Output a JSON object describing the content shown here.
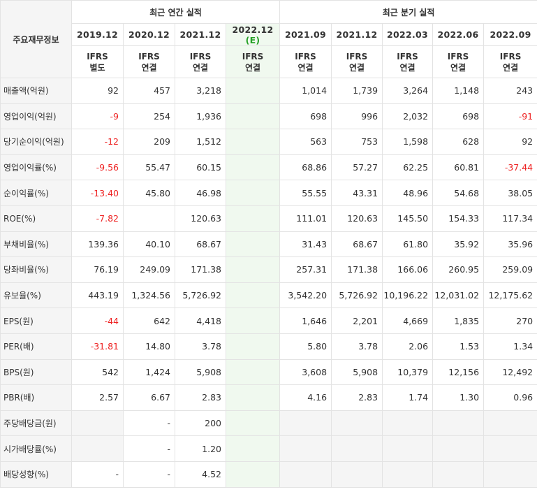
{
  "header": {
    "corner_label": "주요재무정보",
    "annual_group_label": "최근 연간 실적",
    "quarterly_group_label": "최근 분기 실적",
    "annual_periods": [
      {
        "year": "2019.12",
        "ifrs": "IFRS",
        "basis": "별도"
      },
      {
        "year": "2020.12",
        "ifrs": "IFRS",
        "basis": "연결"
      },
      {
        "year": "2021.12",
        "ifrs": "IFRS",
        "basis": "연결"
      },
      {
        "year": "2022.12",
        "estimate_mark": "(E)",
        "ifrs": "IFRS",
        "basis": "연결"
      }
    ],
    "quarterly_periods": [
      {
        "year": "2021.09",
        "ifrs": "IFRS",
        "basis": "연결"
      },
      {
        "year": "2021.12",
        "ifrs": "IFRS",
        "basis": "연결"
      },
      {
        "year": "2022.03",
        "ifrs": "IFRS",
        "basis": "연결"
      },
      {
        "year": "2022.06",
        "ifrs": "IFRS",
        "basis": "연결"
      },
      {
        "year": "2022.09",
        "ifrs": "IFRS",
        "basis": "연결"
      }
    ]
  },
  "colors": {
    "negative": "#ee2222",
    "ifrs_label": "#f25f0f",
    "estimate_column": "#f0f9ef",
    "estimate_mark": "#27a127",
    "label_background": "#f5f5f5"
  },
  "rows": [
    {
      "label": "매출액(억원)",
      "values": [
        "92",
        "457",
        "3,218",
        "",
        "1,014",
        "1,739",
        "3,264",
        "1,148",
        "243"
      ]
    },
    {
      "label": "영업이익(억원)",
      "values": [
        "-9",
        "254",
        "1,936",
        "",
        "698",
        "996",
        "2,032",
        "698",
        "-91"
      ]
    },
    {
      "label": "당기순이익(억원)",
      "values": [
        "-12",
        "209",
        "1,512",
        "",
        "563",
        "753",
        "1,598",
        "628",
        "92"
      ]
    },
    {
      "label": "영업이익률(%)",
      "values": [
        "-9.56",
        "55.47",
        "60.15",
        "",
        "68.86",
        "57.27",
        "62.25",
        "60.81",
        "-37.44"
      ]
    },
    {
      "label": "순이익률(%)",
      "values": [
        "-13.40",
        "45.80",
        "46.98",
        "",
        "55.55",
        "43.31",
        "48.96",
        "54.68",
        "38.05"
      ]
    },
    {
      "label": "ROE(%)",
      "values": [
        "-7.82",
        "",
        "120.63",
        "",
        "111.01",
        "120.63",
        "145.50",
        "154.33",
        "117.34"
      ]
    },
    {
      "label": "부채비율(%)",
      "values": [
        "139.36",
        "40.10",
        "68.67",
        "",
        "31.43",
        "68.67",
        "61.80",
        "35.92",
        "35.96"
      ]
    },
    {
      "label": "당좌비율(%)",
      "values": [
        "76.19",
        "249.09",
        "171.38",
        "",
        "257.31",
        "171.38",
        "166.06",
        "260.95",
        "259.09"
      ]
    },
    {
      "label": "유보율(%)",
      "values": [
        "443.19",
        "1,324.56",
        "5,726.92",
        "",
        "3,542.20",
        "5,726.92",
        "10,196.22",
        "12,031.02",
        "12,175.62"
      ]
    },
    {
      "label": "EPS(원)",
      "values": [
        "-44",
        "642",
        "4,418",
        "",
        "1,646",
        "2,201",
        "4,669",
        "1,835",
        "270"
      ]
    },
    {
      "label": "PER(배)",
      "values": [
        "-31.81",
        "14.80",
        "3.78",
        "",
        "5.80",
        "3.78",
        "2.06",
        "1.53",
        "1.34"
      ]
    },
    {
      "label": "BPS(원)",
      "values": [
        "542",
        "1,424",
        "5,908",
        "",
        "3,608",
        "5,908",
        "10,379",
        "12,156",
        "12,492"
      ]
    },
    {
      "label": "PBR(배)",
      "values": [
        "2.57",
        "6.67",
        "2.83",
        "",
        "4.16",
        "2.83",
        "1.74",
        "1.30",
        "0.96"
      ]
    },
    {
      "label": "주당배당금(원)",
      "values": [
        "",
        "-",
        "200",
        "",
        "",
        "",
        "",
        "",
        ""
      ]
    },
    {
      "label": "시가배당률(%)",
      "values": [
        "",
        "-",
        "1.20",
        "",
        "",
        "",
        "",
        "",
        ""
      ]
    },
    {
      "label": "배당성향(%)",
      "values": [
        "-",
        "-",
        "4.52",
        "",
        "",
        "",
        "",
        "",
        ""
      ]
    }
  ]
}
